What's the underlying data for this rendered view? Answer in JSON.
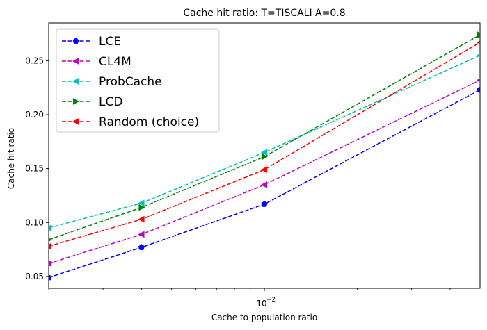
{
  "chart_data": {
    "type": "line",
    "title": "Cache hit ratio: T=TISCALI A=0.8",
    "xlabel": "Cache to population ratio",
    "ylabel": "Cache hit ratio",
    "xscale": "log",
    "x": [
      0.002,
      0.004,
      0.01,
      0.05
    ],
    "xlim": [
      0.002,
      0.05
    ],
    "ylim": [
      0.039,
      0.285
    ],
    "xticks_major": [
      {
        "value": 0.01,
        "base": "10",
        "exponent": "−2"
      }
    ],
    "xticks_minor": [
      0.002,
      0.003,
      0.004,
      0.005,
      0.006,
      0.007,
      0.008,
      0.009,
      0.02,
      0.03,
      0.04
    ],
    "yticks": [
      {
        "value": 0.05,
        "label": "0.05"
      },
      {
        "value": 0.1,
        "label": "0.10"
      },
      {
        "value": 0.15,
        "label": "0.15"
      },
      {
        "value": 0.2,
        "label": "0.20"
      },
      {
        "value": 0.25,
        "label": "0.25"
      }
    ],
    "grid": false,
    "legend": {
      "position": "top-left"
    },
    "series": [
      {
        "name": "LCE",
        "color": "#0000ff",
        "marker": "pentagon",
        "values": [
          0.049,
          0.077,
          0.117,
          0.223
        ]
      },
      {
        "name": "CL4M",
        "color": "#bf00bf",
        "marker": "triangle-left",
        "values": [
          0.062,
          0.089,
          0.135,
          0.232
        ]
      },
      {
        "name": "ProbCache",
        "color": "#00bfbf",
        "marker": "triangle-left",
        "values": [
          0.095,
          0.118,
          0.165,
          0.255
        ]
      },
      {
        "name": "LCD",
        "color": "#008000",
        "marker": "triangle-right",
        "values": [
          0.084,
          0.114,
          0.161,
          0.274
        ]
      },
      {
        "name": "Random (choice)",
        "color": "#ff0000",
        "marker": "triangle-left",
        "values": [
          0.078,
          0.103,
          0.149,
          0.267
        ]
      }
    ]
  }
}
